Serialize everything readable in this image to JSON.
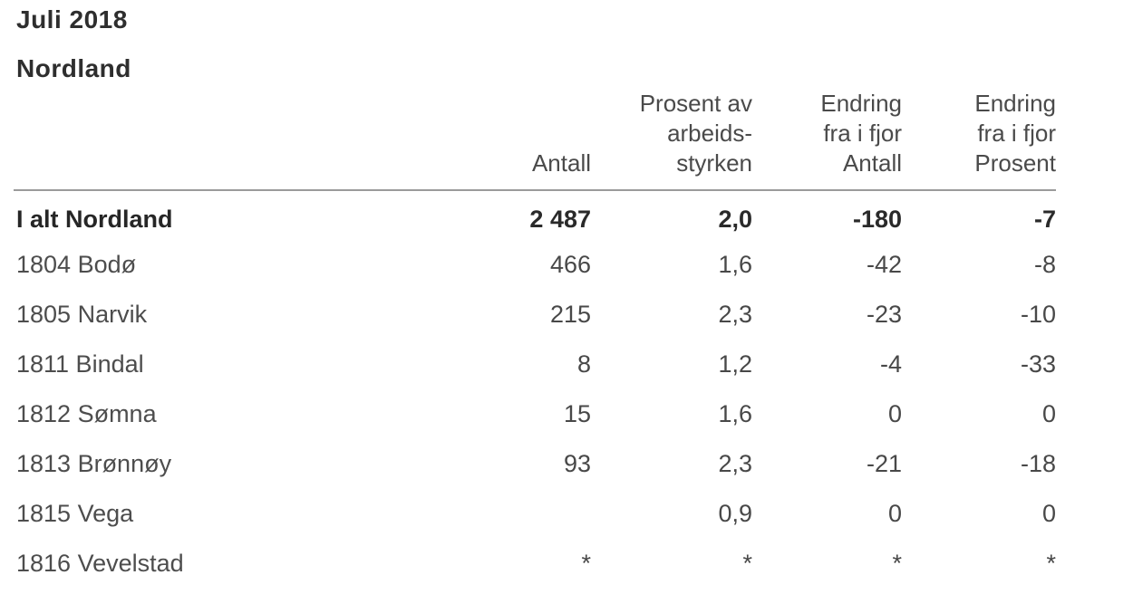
{
  "page": {
    "title": "Juli 2018",
    "subtitle": "Nordland"
  },
  "table": {
    "columns": {
      "label": "",
      "antall": "Antall",
      "prosent": "Prosent av\narbeids-\nstyrken",
      "endring_antall": "Endring\nfra i fjor\nAntall",
      "endring_prosent": "Endring\nfra i fjor\nProsent"
    },
    "rows": [
      {
        "label": "I alt Nordland",
        "antall": "2 487",
        "prosent": "2,0",
        "endring_antall": "-180",
        "endring_prosent": "-7",
        "bold": true
      },
      {
        "label": "1804 Bodø",
        "antall": "466",
        "prosent": "1,6",
        "endring_antall": "-42",
        "endring_prosent": "-8",
        "bold": false
      },
      {
        "label": "1805 Narvik",
        "antall": "215",
        "prosent": "2,3",
        "endring_antall": "-23",
        "endring_prosent": "-10",
        "bold": false
      },
      {
        "label": "1811 Bindal",
        "antall": "8",
        "prosent": "1,2",
        "endring_antall": "-4",
        "endring_prosent": "-33",
        "bold": false
      },
      {
        "label": "1812 Sømna",
        "antall": "15",
        "prosent": "1,6",
        "endring_antall": "0",
        "endring_prosent": "0",
        "bold": false
      },
      {
        "label": "1813 Brønnøy",
        "antall": "93",
        "prosent": "2,3",
        "endring_antall": "-21",
        "endring_prosent": "-18",
        "bold": false
      },
      {
        "label": "1815 Vega",
        "antall": "",
        "prosent": "0,9",
        "endring_antall": "0",
        "endring_prosent": "0",
        "bold": false
      },
      {
        "label": "1816 Vevelstad",
        "antall": "*",
        "prosent": "*",
        "endring_antall": "*",
        "endring_prosent": "*",
        "bold": false
      }
    ]
  },
  "colors": {
    "text": "#484848",
    "heading": "#2e2e2e",
    "rule": "#9b9b9b",
    "background": "#ffffff"
  }
}
